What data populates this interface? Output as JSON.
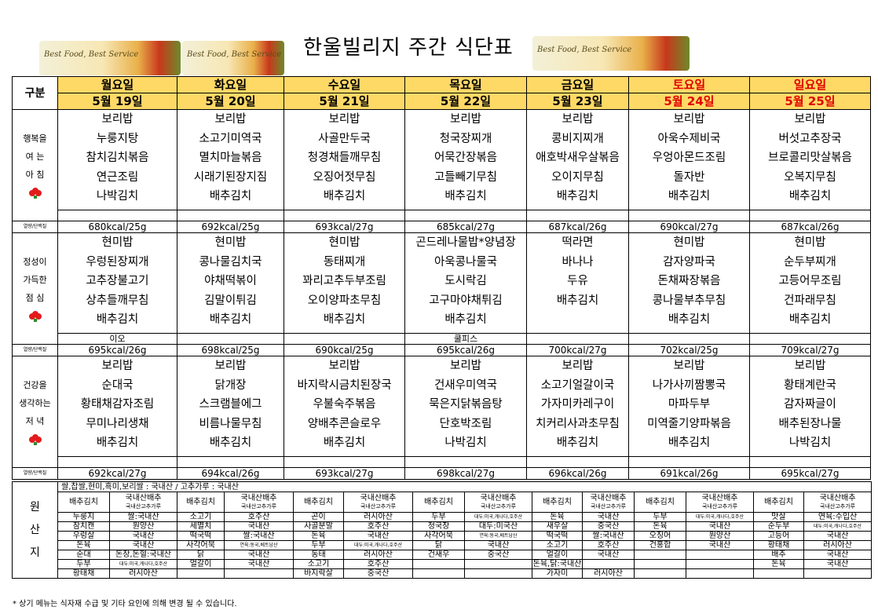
{
  "header": {
    "title": "한울빌리지 주간 식단표",
    "banner_text": "Best Food, Best Service"
  },
  "days": [
    {
      "name": "월요일",
      "date": "5월 19일",
      "red": false
    },
    {
      "name": "화요일",
      "date": "5월 20일",
      "red": false
    },
    {
      "name": "수요일",
      "date": "5월 21일",
      "red": false
    },
    {
      "name": "목요일",
      "date": "5월 22일",
      "red": false
    },
    {
      "name": "금요일",
      "date": "5월 23일",
      "red": false
    },
    {
      "name": "토요일",
      "date": "5월 24일",
      "red": true
    },
    {
      "name": "일요일",
      "date": "5월 25일",
      "red": true
    }
  ],
  "category_label": "구분",
  "kcal_label": "열량/단백질",
  "meals": [
    {
      "side": [
        "행복을",
        "여 는",
        "아 침"
      ],
      "items": [
        [
          "보리밥",
          "누룽지탕",
          "참치김치볶음",
          "연근조림",
          "나박김치"
        ],
        [
          "보리밥",
          "소고기미역국",
          "멸치마늘볶음",
          "시래기된장지짐",
          "배추김치"
        ],
        [
          "보리밥",
          "사골만두국",
          "청경채들깨무침",
          "오징어젓무침",
          "배추김치"
        ],
        [
          "보리밥",
          "청국장찌개",
          "어묵간장볶음",
          "고들빼기무침",
          "배추김치"
        ],
        [
          "보리밥",
          "콩비지찌개",
          "애호박새우살볶음",
          "오이지무침",
          "배추김치"
        ],
        [
          "보리밥",
          "아욱수제비국",
          "우엉아몬드조림",
          "돌자반",
          "배추김치"
        ],
        [
          "보리밥",
          "버섯고추장국",
          "브로콜리맛살볶음",
          "오복지무침",
          "배추김치"
        ]
      ],
      "extra": [
        "",
        "",
        "",
        "",
        "",
        "",
        ""
      ],
      "kcal": [
        "680kcal/25g",
        "692kcal/25g",
        "693kcal/27g",
        "685kcal/27g",
        "687kcal/26g",
        "690kcal/27g",
        "687kcal/26g"
      ]
    },
    {
      "side": [
        "정성이",
        "가득한",
        "점 심"
      ],
      "items": [
        [
          "현미밥",
          "우렁된장찌개",
          "고추장불고기",
          "상추들깨무침",
          "배추김치"
        ],
        [
          "현미밥",
          "콩나물김치국",
          "야채떡볶이",
          "김말이튀김",
          "배추김치"
        ],
        [
          "현미밥",
          "동태찌개",
          "꽈리고추두부조림",
          "오이양파초무침",
          "배추김치"
        ],
        [
          "곤드레나물밥*양념장",
          "아욱콩나물국",
          "도시락김",
          "고구마야채튀김",
          "배추김치"
        ],
        [
          "",
          "떡라면",
          "바나나",
          "두유",
          "배추김치"
        ],
        [
          "현미밥",
          "감자양파국",
          "돈채짜장볶음",
          "콩나물부추무침",
          "배추김치"
        ],
        [
          "현미밥",
          "순두부찌개",
          "고등어무조림",
          "건파래무침",
          "배추김치"
        ]
      ],
      "extra": [
        "이오",
        "",
        "",
        "쿨피스",
        "",
        "",
        ""
      ],
      "kcal": [
        "695kcal/26g",
        "698kcal/25g",
        "690kcal/25g",
        "695kcal/26g",
        "700kcal/27g",
        "702kcal/25g",
        "709kcal/27g"
      ]
    },
    {
      "side": [
        "건강을",
        "생각하는",
        "저 녁"
      ],
      "items": [
        [
          "보리밥",
          "순대국",
          "황태채감자조림",
          "무미나리생채",
          "배추김치"
        ],
        [
          "보리밥",
          "닭개장",
          "스크램블에그",
          "비름나물무침",
          "배추김치"
        ],
        [
          "보리밥",
          "바지락시금치된장국",
          "우불숙주볶음",
          "양배추콘슬로우",
          "배추김치"
        ],
        [
          "보리밥",
          "건새우미역국",
          "묵은지닭볶음탕",
          "단호박조림",
          "나박김치"
        ],
        [
          "보리밥",
          "소고기얼갈이국",
          "가자미카레구이",
          "치커리사과초무침",
          "배추김치"
        ],
        [
          "보리밥",
          "나가사끼짬뽕국",
          "마파두부",
          "미역줄기양파볶음",
          "배추김치"
        ],
        [
          "보리밥",
          "황태계란국",
          "감자짜글이",
          "배추된장나물",
          "나박김치"
        ]
      ],
      "extra": [
        "",
        "",
        "",
        "",
        "",
        "",
        ""
      ],
      "kcal": [
        "692kcal/27g",
        "694kcal/26g",
        "693kcal/27g",
        "698kcal/27g",
        "696kcal/26g",
        "691kcal/26g",
        "695kcal/27g"
      ]
    }
  ],
  "origin": {
    "side": [
      "원",
      "산",
      "지"
    ],
    "note": "쌀,찹쌀,현미,흑미,보리쌀 : 국내산 / 고추가루 : 국내산",
    "headers": [
      [
        "배추김치",
        "국내산배추",
        "국내산고추가루"
      ],
      [
        "배추김치",
        "국내산배추",
        "국내산고추가루"
      ],
      [
        "배추김치",
        "국내산배추",
        "국내산고추가루"
      ],
      [
        "배추김치",
        "국내산배추",
        "국내산고추가루"
      ],
      [
        "배추김치",
        "국내산배추",
        "국내산고추가루"
      ],
      [
        "배추김치",
        "국내산배추",
        "국내산고추가루"
      ],
      [
        "배추김치",
        "국내산배추",
        "국내산고추가루"
      ]
    ],
    "rows": [
      [
        "누룽지",
        "쌀:국내산",
        "소고기",
        "호주산",
        "곤이",
        "러시아산",
        "두부",
        "대두:미국,캐나다,호주산",
        "돈육",
        "국내산",
        "두부",
        "대두:미국,캐나다,호주산",
        "맛살",
        "연육:수입산"
      ],
      [
        "참치캔",
        "원양산",
        "세멸치",
        "국내산",
        "사골분말",
        "호주산",
        "청국장",
        "대두:미국산",
        "새우살",
        "중국산",
        "돈육",
        "국내산",
        "순두부",
        "대두:미국,캐나다,호주산"
      ],
      [
        "우렁살",
        "국내산",
        "떡국떡",
        "쌀:국내산",
        "돈육",
        "국내산",
        "사각어묵",
        "연육:동국,베트남산",
        "떡국떡",
        "쌀:국내산",
        "오징어",
        "원양산",
        "고등어",
        "국내산"
      ],
      [
        "돈육",
        "국내산",
        "사각어묵",
        "연육:동국,베트남산",
        "두부",
        "대두:미국,캐나다,호주산",
        "닭",
        "국내산",
        "소고기",
        "호주산",
        "건홍합",
        "국내산",
        "황태채",
        "러시아산"
      ],
      [
        "순대",
        "돈창,돈혈:국내산",
        "닭",
        "국내산",
        "동태",
        "러시아산",
        "건새우",
        "중국산",
        "얼갈이",
        "국내산",
        "",
        "",
        "배추",
        "국내산"
      ],
      [
        "두부",
        "대두:미국,캐나다,호주산",
        "얼갈이",
        "국내산",
        "소고기",
        "호주산",
        "",
        "",
        "돈육,닭:국내산",
        "",
        "",
        "",
        "돈육",
        "국내산"
      ],
      [
        "황태채",
        "러시아산",
        "",
        "",
        "바지락살",
        "중국산",
        "",
        "",
        "가자미",
        "러시아산",
        "",
        "",
        "",
        ""
      ]
    ]
  },
  "footnote": "* 상기 메뉴는 식자재 수급 및 기타 요인에 의해 변경 될 수 있습니다."
}
